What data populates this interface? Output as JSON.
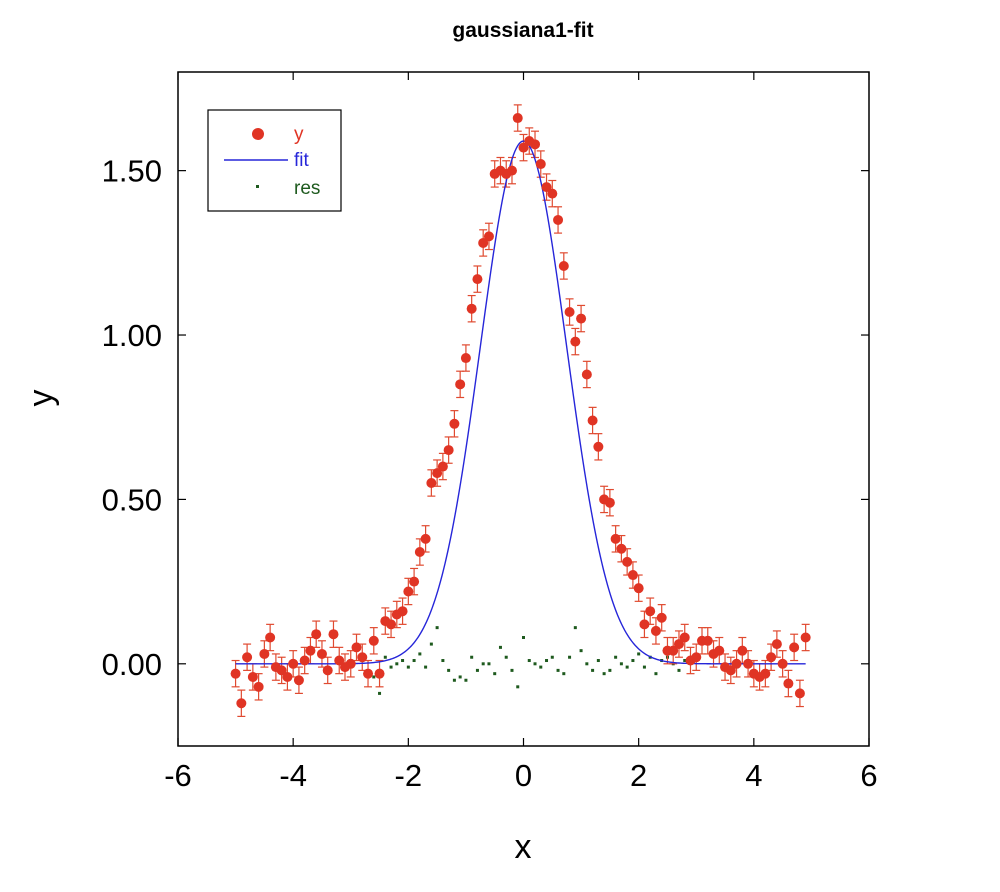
{
  "chart_data": {
    "type": "scatter",
    "title": "gaussiana1-fit",
    "xlabel": "x",
    "ylabel": "y",
    "xlim": [
      -6,
      6
    ],
    "ylim": [
      -0.25,
      1.8
    ],
    "xticks": [
      "-6",
      "-4",
      "-2",
      "0",
      "2",
      "4",
      "6"
    ],
    "xtick_values": [
      -6,
      -4,
      -2,
      0,
      2,
      4,
      6
    ],
    "yticks": [
      "0.00",
      "0.50",
      "1.00",
      "1.50"
    ],
    "ytick_values": [
      0,
      0.5,
      1,
      1.5
    ],
    "legend": {
      "placement": "top-left",
      "entries": [
        {
          "label": "y",
          "color": "#e03424",
          "marker": "filled-circle"
        },
        {
          "label": "fit",
          "color": "#2626d9",
          "marker": "line"
        },
        {
          "label": "res",
          "color": "#1e5a1e",
          "marker": "small-square"
        }
      ]
    },
    "colors": {
      "y": "#e03424",
      "errorbar": "#e04a30",
      "fit": "#2626d9",
      "res": "#1e5a1e"
    },
    "fit_model": {
      "amplitude": 1.59,
      "center": 0.0,
      "sigma": 0.75
    },
    "series": [
      {
        "name": "y",
        "error": 0.04,
        "x": [
          -5.0,
          -4.9,
          -4.8,
          -4.7,
          -4.6,
          -4.5,
          -4.4,
          -4.3,
          -4.2,
          -4.1,
          -4.0,
          -3.9,
          -3.8,
          -3.7,
          -3.6,
          -3.5,
          -3.4,
          -3.3,
          -3.2,
          -3.1,
          -3.0,
          -2.9,
          -2.8,
          -2.7,
          -2.6,
          -2.5,
          -2.4,
          -2.3,
          -2.2,
          -2.1,
          -2.0,
          -1.9,
          -1.8,
          -1.7,
          -1.6,
          -1.5,
          -1.4,
          -1.3,
          -1.2,
          -1.1,
          -1.0,
          -0.9,
          -0.8,
          -0.7,
          -0.6,
          -0.5,
          -0.4,
          -0.3,
          -0.2,
          -0.1,
          0.0,
          0.1,
          0.2,
          0.3,
          0.4,
          0.5,
          0.6,
          0.7,
          0.8,
          0.9,
          1.0,
          1.1,
          1.2,
          1.3,
          1.4,
          1.5,
          1.6,
          1.7,
          1.8,
          1.9,
          2.0,
          2.1,
          2.2,
          2.3,
          2.4,
          2.5,
          2.6,
          2.7,
          2.8,
          2.9,
          3.0,
          3.1,
          3.2,
          3.3,
          3.4,
          3.5,
          3.6,
          3.7,
          3.8,
          3.9,
          4.0,
          4.1,
          4.2,
          4.3,
          4.4,
          4.5,
          4.6,
          4.7,
          4.8,
          4.9
        ],
        "y": [
          -0.03,
          -0.12,
          0.02,
          -0.04,
          -0.07,
          0.03,
          0.08,
          -0.01,
          -0.02,
          -0.04,
          0.0,
          -0.05,
          0.01,
          0.04,
          0.09,
          0.03,
          -0.02,
          0.09,
          0.01,
          -0.01,
          0.0,
          0.05,
          0.02,
          -0.03,
          0.07,
          -0.03,
          0.13,
          0.12,
          0.15,
          0.16,
          0.22,
          0.25,
          0.34,
          0.38,
          0.55,
          0.58,
          0.6,
          0.65,
          0.73,
          0.85,
          0.93,
          1.08,
          1.17,
          1.28,
          1.3,
          1.49,
          1.5,
          1.49,
          1.5,
          1.66,
          1.57,
          1.59,
          1.58,
          1.52,
          1.45,
          1.43,
          1.35,
          1.21,
          1.07,
          0.98,
          1.05,
          0.88,
          0.74,
          0.66,
          0.5,
          0.49,
          0.38,
          0.35,
          0.31,
          0.27,
          0.23,
          0.12,
          0.16,
          0.1,
          0.14,
          0.04,
          0.04,
          0.06,
          0.08,
          0.01,
          0.02,
          0.07,
          0.07,
          0.03,
          0.04,
          -0.01,
          -0.02,
          0.0,
          0.04,
          0.0,
          -0.03,
          -0.04,
          -0.03,
          0.02,
          0.06,
          0.0,
          -0.06,
          0.05,
          -0.09,
          0.08
        ]
      },
      {
        "name": "res",
        "x": [
          -2.6,
          -2.5,
          -2.4,
          -2.3,
          -2.2,
          -2.1,
          -2.0,
          -1.9,
          -1.8,
          -1.7,
          -1.6,
          -1.5,
          -1.4,
          -1.3,
          -1.2,
          -1.1,
          -1.0,
          -0.9,
          -0.8,
          -0.7,
          -0.6,
          -0.5,
          -0.4,
          -0.3,
          -0.2,
          -0.1,
          0.0,
          0.1,
          0.2,
          0.3,
          0.4,
          0.5,
          0.6,
          0.7,
          0.8,
          0.9,
          1.0,
          1.1,
          1.2,
          1.3,
          1.4,
          1.5,
          1.6,
          1.7,
          1.8,
          1.9,
          2.0,
          2.1,
          2.2,
          2.3,
          2.4,
          2.5,
          2.6,
          2.7,
          2.8
        ],
        "y": [
          -0.04,
          -0.09,
          0.02,
          -0.01,
          0.0,
          0.01,
          -0.01,
          0.01,
          0.03,
          -0.01,
          0.06,
          0.11,
          0.01,
          -0.02,
          -0.05,
          -0.04,
          -0.05,
          0.02,
          -0.02,
          0.0,
          0.0,
          -0.03,
          0.05,
          0.02,
          -0.02,
          -0.07,
          0.08,
          0.01,
          0.0,
          -0.01,
          0.01,
          0.02,
          -0.02,
          -0.03,
          0.02,
          0.11,
          0.04,
          0.0,
          -0.02,
          0.01,
          -0.03,
          -0.02,
          0.02,
          0.0,
          -0.01,
          0.01,
          0.03,
          -0.01,
          0.02,
          -0.03,
          0.01,
          0.02,
          0.0,
          -0.02,
          0.01
        ]
      }
    ]
  }
}
